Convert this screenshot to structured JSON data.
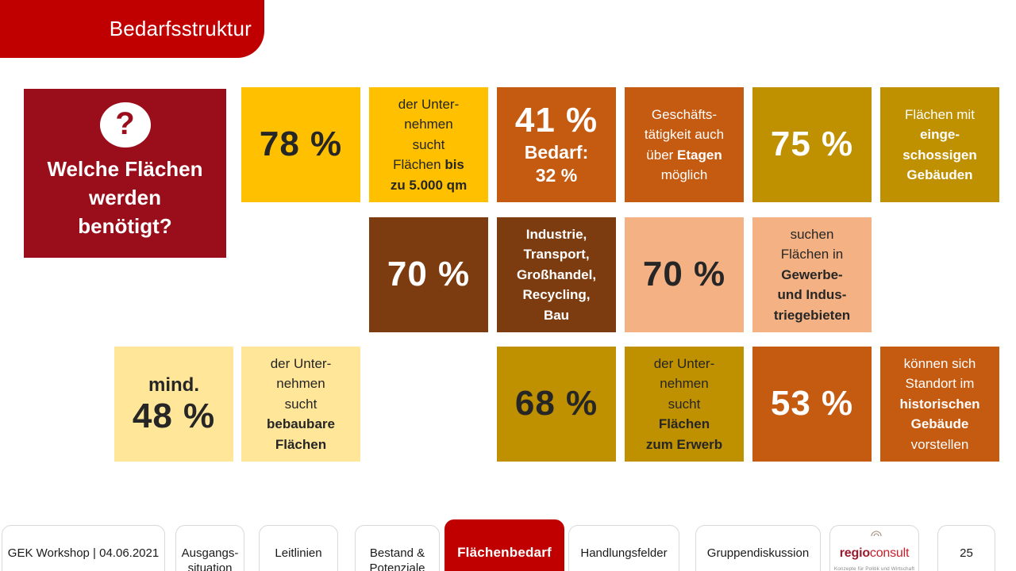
{
  "colors": {
    "header_red": "#C00000",
    "question_red": "#9A0E1B",
    "yellow": "#FFC000",
    "pale_yellow": "#FFE699",
    "gold": "#BF9000",
    "orange": "#C55A11",
    "brown": "#7D3C10",
    "peach": "#F4B183",
    "dark_text": "#262626",
    "white": "#FFFFFF",
    "tab_border": "#D9D9D9"
  },
  "header": {
    "title": "Bedarfsstruktur"
  },
  "question_box": {
    "icon_glyph": "?",
    "text": "Welche Flächen\nwerden\nbenötigt?"
  },
  "stats": {
    "p78": {
      "value": "78 %",
      "bg": "#FFC000",
      "fg": "#262626"
    },
    "s5000": {
      "bg": "#FFC000",
      "fg": "#262626",
      "segments": [
        {
          "t": "der Unter-\nnehmen\nsucht\nFlächen ",
          "b": false
        },
        {
          "t": "bis\nzu 5.000 qm",
          "b": true
        }
      ]
    },
    "p41": {
      "value": "41 %",
      "sub": "Bedarf:\n32 %",
      "bg": "#C55A11",
      "fg": "#FFFFFF"
    },
    "l_etagen": {
      "bg": "#C55A11",
      "fg": "#FFFFFF",
      "segments": [
        {
          "t": "Geschäfts-\ntätigkeit auch\nüber ",
          "b": false
        },
        {
          "t": "Etagen",
          "b": true
        },
        {
          "t": "\nmöglich",
          "b": false
        }
      ]
    },
    "p75": {
      "value": "75 %",
      "bg": "#BF9000",
      "fg": "#FFFFFF"
    },
    "l_eingeschossig": {
      "bg": "#BF9000",
      "fg": "#FFFFFF",
      "segments": [
        {
          "t": "Flächen mit\n",
          "b": false
        },
        {
          "t": "einge-\nschossigen\nGebäuden",
          "b": true
        }
      ]
    },
    "p70_industrie": {
      "value": "70 %",
      "bg": "#7D3C10",
      "fg": "#FFFFFF"
    },
    "l_industrie": {
      "bg": "#7D3C10",
      "fg": "#FFFFFF",
      "segments": [
        {
          "t": "Industrie,\nTransport,\nGroßhandel,\nRecycling,\nBau",
          "b": true
        }
      ]
    },
    "p70_gewerbe": {
      "value": "70 %",
      "bg": "#F4B183",
      "fg": "#262626"
    },
    "l_gewerbe": {
      "bg": "#F4B183",
      "fg": "#262626",
      "segments": [
        {
          "t": "suchen\nFlächen in\n",
          "b": false
        },
        {
          "t": "Gewerbe-\nund Indus-\ntriegebieten",
          "b": true
        }
      ]
    },
    "p48": {
      "prefix": "mind.",
      "value": "48 %",
      "bg": "#FFE699",
      "fg": "#262626"
    },
    "l_bebaubar": {
      "bg": "#FFE699",
      "fg": "#262626",
      "segments": [
        {
          "t": "der Unter-\nnehmen\nsucht\n",
          "b": false
        },
        {
          "t": "bebaubare\nFlächen",
          "b": true
        }
      ]
    },
    "p68": {
      "value": "68 %",
      "bg": "#BF9000",
      "fg": "#262626"
    },
    "l_erwerb": {
      "bg": "#BF9000",
      "fg": "#262626",
      "segments": [
        {
          "t": "der Unter-\nnehmen\nsucht\n",
          "b": false
        },
        {
          "t": "Flächen\nzum Erwerb",
          "b": true
        }
      ]
    },
    "p53": {
      "value": "53 %",
      "bg": "#C55A11",
      "fg": "#FFFFFF"
    },
    "l_historisch": {
      "bg": "#C55A11",
      "fg": "#FFFFFF",
      "segments": [
        {
          "t": "können sich\nStandort im\n",
          "b": false
        },
        {
          "t": "historischen\nGebäude",
          "b": true
        },
        {
          "t": "\nvorstellen",
          "b": false
        }
      ]
    }
  },
  "footer": {
    "tabs": [
      {
        "label": "GEK Workshop | 04.06.2021",
        "active": false
      },
      {
        "label": "Ausgangs-\nsituation",
        "active": false
      },
      {
        "label": "Leitlinien",
        "active": false
      },
      {
        "label": "Bestand &\nPotenziale",
        "active": false
      },
      {
        "label": "Flächenbedarf",
        "active": true
      },
      {
        "label": "Handlungsfelder",
        "active": false
      },
      {
        "label": "Gruppendiskussion",
        "active": false
      }
    ],
    "logo": {
      "part1": "regio",
      "part2": "consult",
      "tagline": "Konzepte für Politik und Wirtschaft",
      "brand_dark_red": "#9B1B2E",
      "brand_red": "#C4202C"
    },
    "page_number": "25"
  }
}
